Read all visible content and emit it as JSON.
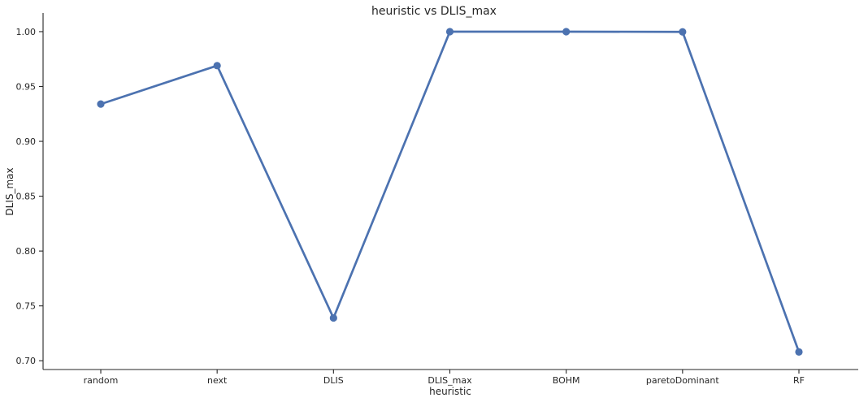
{
  "chart_data": {
    "type": "line",
    "title": "heuristic vs DLIS_max",
    "xlabel": "heuristic",
    "ylabel": "DLIS_max",
    "categories": [
      "random",
      "next",
      "DLIS",
      "DLIS_max",
      "BOHM",
      "paretoDominant",
      "RF"
    ],
    "series": [
      {
        "values": [
          0.934,
          0.969,
          0.739,
          1.0,
          1.0,
          0.9998,
          0.708
        ]
      }
    ],
    "ylim": [
      0.692,
      1.017
    ],
    "yticks": [
      "0.70",
      "0.75",
      "0.80",
      "0.85",
      "0.90",
      "0.95",
      "1.00"
    ],
    "grid": false,
    "line_color": "#4c72b0"
  }
}
